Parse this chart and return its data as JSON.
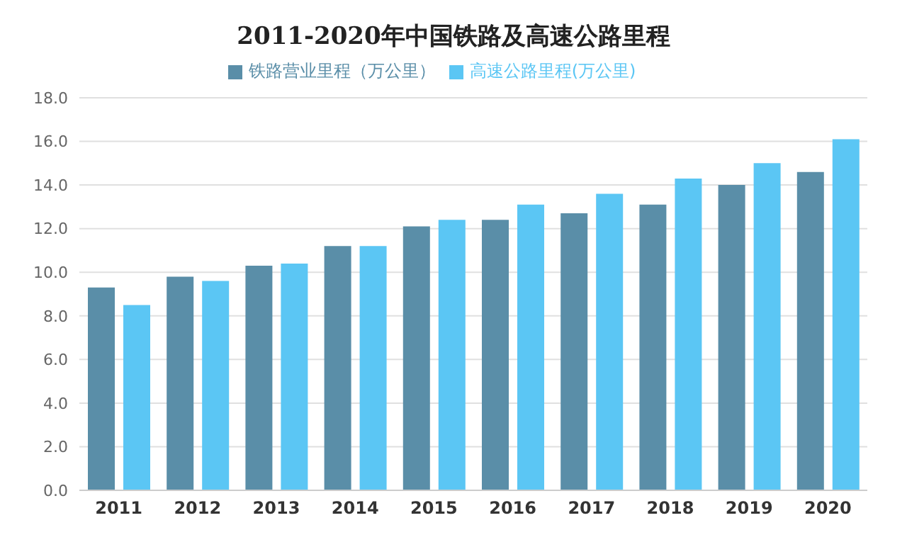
{
  "chart_data": {
    "type": "bar",
    "title": "2011-2020年中国铁路及高速公路里程",
    "categories": [
      "2011",
      "2012",
      "2013",
      "2014",
      "2015",
      "2016",
      "2017",
      "2018",
      "2019",
      "2020"
    ],
    "series": [
      {
        "name": "铁路营业里程（万公里）",
        "color": "#5a8ea8",
        "values": [
          9.3,
          9.8,
          10.3,
          11.2,
          12.1,
          12.4,
          12.7,
          13.1,
          14.0,
          14.6
        ]
      },
      {
        "name": "高速公路里程(万公里)",
        "color": "#5bc6f4",
        "values": [
          8.5,
          9.6,
          10.4,
          11.2,
          12.4,
          13.1,
          13.6,
          14.3,
          15.0,
          16.1
        ]
      }
    ],
    "ylim": [
      0,
      18
    ],
    "yticks": [
      {
        "value": 0,
        "label": "0.0"
      },
      {
        "value": 2,
        "label": "2.0"
      },
      {
        "value": 4,
        "label": "4.0"
      },
      {
        "value": 6,
        "label": "6.0"
      },
      {
        "value": 8,
        "label": "8.0"
      },
      {
        "value": 10,
        "label": "10.0"
      },
      {
        "value": 12,
        "label": "12.0"
      },
      {
        "value": 14,
        "label": "14.0"
      },
      {
        "value": 16,
        "label": "16.0"
      },
      {
        "value": 18,
        "label": "18.0"
      }
    ],
    "grid": "y",
    "legend": "top"
  }
}
